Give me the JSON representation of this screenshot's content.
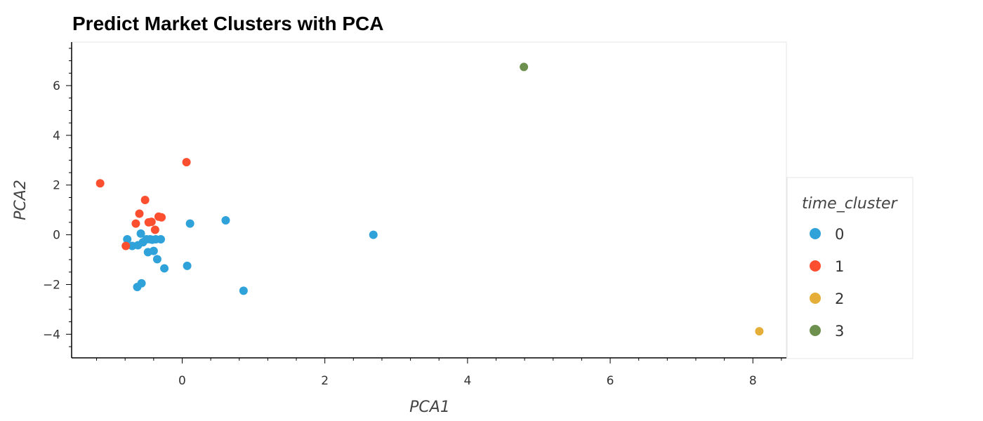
{
  "chart_data": {
    "type": "scatter",
    "title": "Predict Market Clusters with PCA",
    "xlabel": "PCA1",
    "ylabel": "PCA2",
    "xlim": [
      -1.55,
      8.47
    ],
    "ylim": [
      -4.95,
      7.75
    ],
    "xticks": [
      0,
      2,
      4,
      6,
      8
    ],
    "yticks": [
      -4,
      -2,
      0,
      2,
      4,
      6
    ],
    "grid": false,
    "legend": {
      "title": "time_cluster",
      "position": "right"
    },
    "series": [
      {
        "name": "0",
        "color": "#30a2da",
        "points": [
          [
            -0.77,
            -0.18
          ],
          [
            -0.7,
            -0.45
          ],
          [
            -0.62,
            -0.42
          ],
          [
            -0.58,
            0.05
          ],
          [
            -0.55,
            -0.3
          ],
          [
            -0.5,
            -0.18
          ],
          [
            -0.48,
            -0.7
          ],
          [
            -0.45,
            -0.18
          ],
          [
            -0.42,
            -0.2
          ],
          [
            -0.4,
            -0.65
          ],
          [
            -0.37,
            -0.18
          ],
          [
            -0.35,
            -0.98
          ],
          [
            -0.3,
            -0.18
          ],
          [
            -0.25,
            -1.35
          ],
          [
            -0.63,
            -2.1
          ],
          [
            -0.57,
            -1.95
          ],
          [
            0.07,
            -1.25
          ],
          [
            0.11,
            0.45
          ],
          [
            0.61,
            0.58
          ],
          [
            0.86,
            -2.25
          ],
          [
            2.68,
            0.0
          ]
        ]
      },
      {
        "name": "1",
        "color": "#fc4f30",
        "points": [
          [
            -1.15,
            2.07
          ],
          [
            -0.79,
            -0.45
          ],
          [
            -0.65,
            0.45
          ],
          [
            -0.6,
            0.85
          ],
          [
            -0.52,
            1.4
          ],
          [
            -0.47,
            0.5
          ],
          [
            -0.43,
            0.52
          ],
          [
            -0.38,
            0.2
          ],
          [
            -0.33,
            0.73
          ],
          [
            -0.29,
            0.7
          ],
          [
            0.06,
            2.92
          ]
        ]
      },
      {
        "name": "2",
        "color": "#e5ae38",
        "points": [
          [
            8.09,
            -3.88
          ]
        ]
      },
      {
        "name": "3",
        "color": "#6d904f",
        "points": [
          [
            4.79,
            6.75
          ]
        ]
      }
    ]
  }
}
